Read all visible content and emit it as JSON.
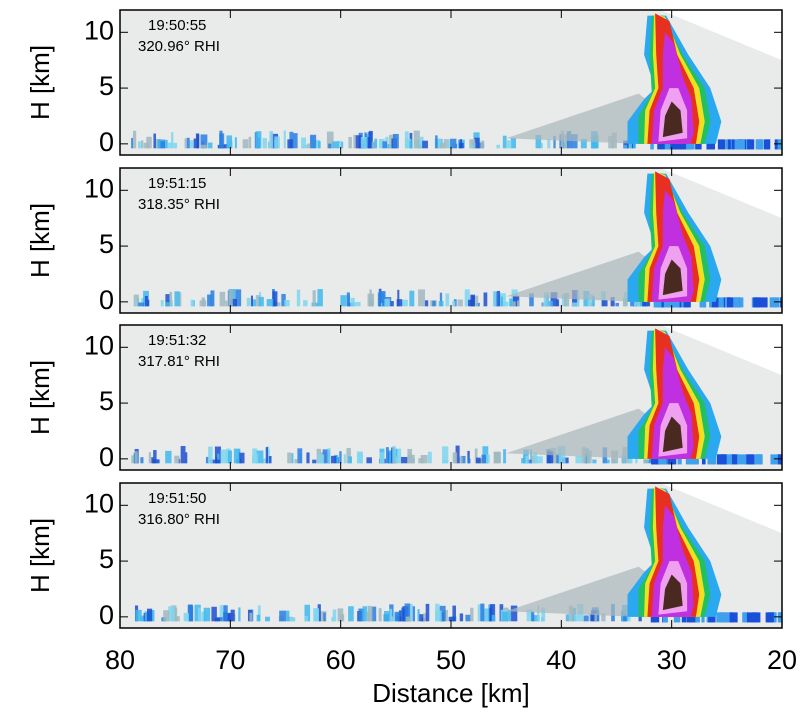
{
  "chart_data": [
    {
      "type": "rhi",
      "annotations": [
        "19:50:55",
        "320.96° RHI"
      ],
      "ylabel": "H [km]",
      "xlim": [
        80,
        20
      ],
      "xticks": [
        80,
        70,
        60,
        50,
        40,
        30,
        20
      ],
      "ylim": [
        -1,
        12
      ],
      "yticks": [
        0,
        5,
        10
      ]
    },
    {
      "type": "rhi",
      "annotations": [
        "19:51:15",
        "318.35° RHI"
      ],
      "ylabel": "H [km]",
      "xlim": [
        80,
        20
      ],
      "xticks": [
        80,
        70,
        60,
        50,
        40,
        30,
        20
      ],
      "ylim": [
        -1,
        12
      ],
      "yticks": [
        0,
        5,
        10
      ]
    },
    {
      "type": "rhi",
      "annotations": [
        "19:51:32",
        "317.81° RHI"
      ],
      "ylabel": "H [km]",
      "xlim": [
        80,
        20
      ],
      "xticks": [
        80,
        70,
        60,
        50,
        40,
        30,
        20
      ],
      "ylim": [
        -1,
        12
      ],
      "yticks": [
        0,
        5,
        10
      ]
    },
    {
      "type": "rhi",
      "annotations": [
        "19:51:50",
        "316.80° RHI"
      ],
      "ylabel": "H [km]",
      "xlabel": "Distance [km]",
      "xlim": [
        80,
        20
      ],
      "xticks": [
        80,
        70,
        60,
        50,
        40,
        30,
        20
      ],
      "ylim": [
        -1,
        12
      ],
      "yticks": [
        0,
        5,
        10
      ]
    }
  ]
}
